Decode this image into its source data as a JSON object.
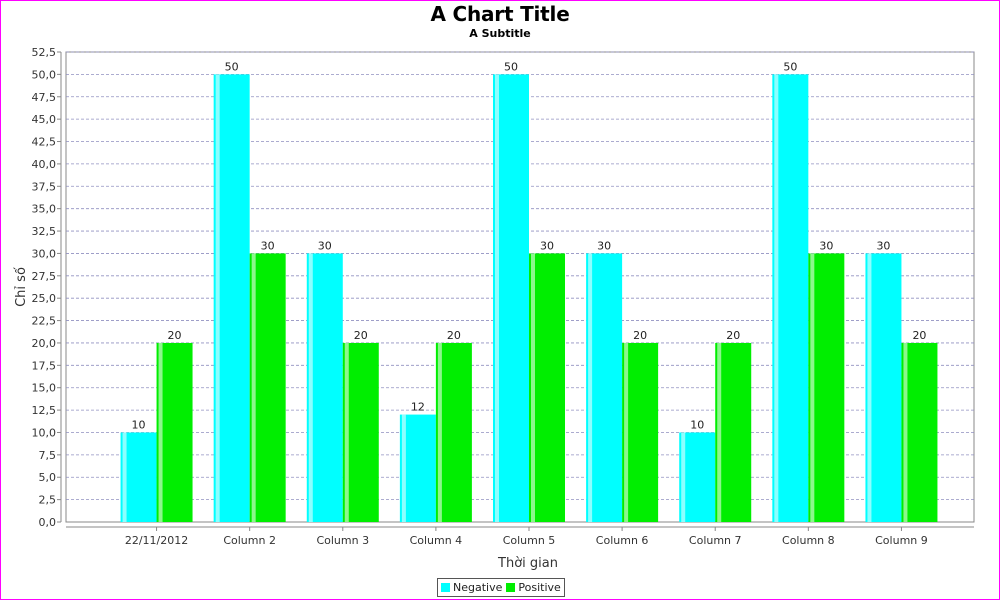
{
  "chart_data": {
    "type": "bar",
    "title": "A Chart Title",
    "subtitle": "A Subtitle",
    "xlabel": "Thời gian",
    "ylabel": "Chỉ số",
    "categories": [
      "22/11/2012",
      "Column 2",
      "Column 3",
      "Column 4",
      "Column 5",
      "Column 6",
      "Column 7",
      "Column 8",
      "Column 9"
    ],
    "series": [
      {
        "name": "Negative",
        "color": "#00ffff",
        "values": [
          10,
          50,
          30,
          12,
          50,
          30,
          10,
          50,
          30
        ]
      },
      {
        "name": "Positive",
        "color": "#00ee00",
        "values": [
          20,
          30,
          20,
          20,
          30,
          20,
          20,
          30,
          20
        ]
      }
    ],
    "ylim": [
      0,
      52.5
    ],
    "yticks": [
      "0,0",
      "2,5",
      "5,0",
      "7,5",
      "10,0",
      "12,5",
      "15,0",
      "17,5",
      "20,0",
      "22,5",
      "25,0",
      "27,5",
      "30,0",
      "32,5",
      "35,0",
      "37,5",
      "40,0",
      "42,5",
      "45,0",
      "47,5",
      "50,0",
      "52,5"
    ],
    "grid": true,
    "legend": "bottom-center",
    "data_labels": true
  }
}
